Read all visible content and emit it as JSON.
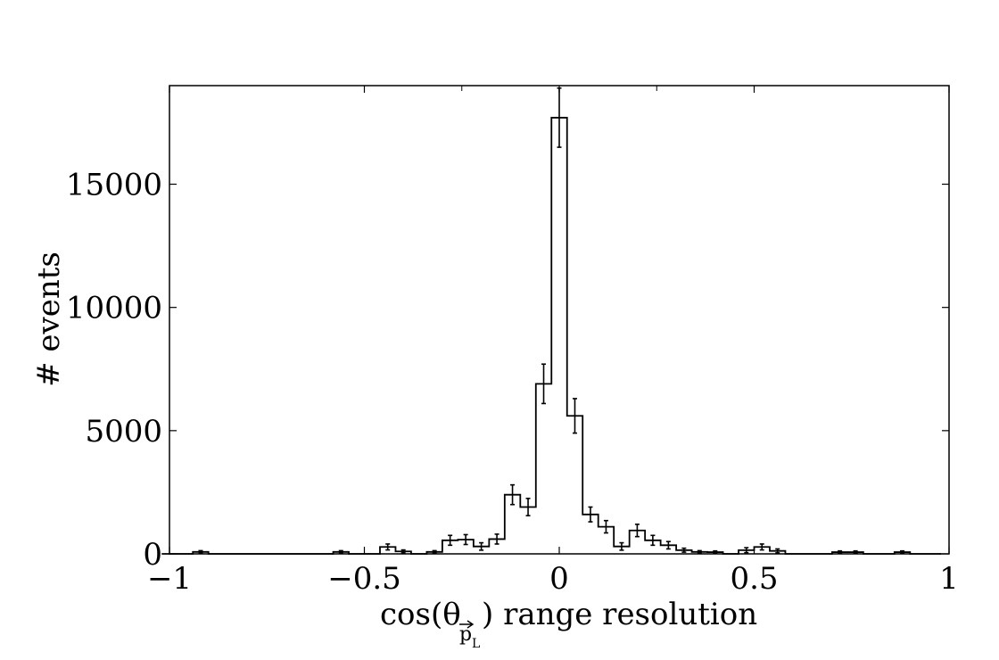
{
  "chart_data": {
    "type": "histogram",
    "xlabel_main": "cos(θ",
    "xlabel_sub": "p",
    "xlabel_subsub": "L",
    "xlabel_rest": ") range resolution",
    "ylabel": "# events",
    "xlim": [
      -1,
      1
    ],
    "ylim": [
      0,
      19000
    ],
    "bin_width": 0.04,
    "x_ticks": [
      -1,
      -0.5,
      0,
      0.5,
      1
    ],
    "x_tick_labels": [
      "−1",
      "−0.5",
      "0",
      "0.5",
      "1"
    ],
    "y_ticks": [
      0,
      5000,
      10000,
      15000
    ],
    "y_tick_labels": [
      "0",
      "5000",
      "10000",
      "15000"
    ],
    "minor_x_ticks": [
      -0.5,
      0,
      0.5
    ],
    "bins": [
      {
        "x": -1.0,
        "y": 0,
        "err": 0
      },
      {
        "x": -0.96,
        "y": 0,
        "err": 0
      },
      {
        "x": -0.92,
        "y": 80,
        "err": 50
      },
      {
        "x": -0.88,
        "y": 0,
        "err": 0
      },
      {
        "x": -0.84,
        "y": 0,
        "err": 0
      },
      {
        "x": -0.8,
        "y": 0,
        "err": 0
      },
      {
        "x": -0.76,
        "y": 0,
        "err": 0
      },
      {
        "x": -0.72,
        "y": 0,
        "err": 0
      },
      {
        "x": -0.68,
        "y": 0,
        "err": 0
      },
      {
        "x": -0.64,
        "y": 0,
        "err": 0
      },
      {
        "x": -0.6,
        "y": 0,
        "err": 0
      },
      {
        "x": -0.56,
        "y": 80,
        "err": 50
      },
      {
        "x": -0.52,
        "y": 0,
        "err": 0
      },
      {
        "x": -0.48,
        "y": 0,
        "err": 0
      },
      {
        "x": -0.44,
        "y": 280,
        "err": 120
      },
      {
        "x": -0.4,
        "y": 100,
        "err": 60
      },
      {
        "x": -0.36,
        "y": 0,
        "err": 0
      },
      {
        "x": -0.32,
        "y": 80,
        "err": 50
      },
      {
        "x": -0.28,
        "y": 550,
        "err": 200
      },
      {
        "x": -0.24,
        "y": 580,
        "err": 200
      },
      {
        "x": -0.2,
        "y": 300,
        "err": 150
      },
      {
        "x": -0.16,
        "y": 600,
        "err": 200
      },
      {
        "x": -0.12,
        "y": 2400,
        "err": 400
      },
      {
        "x": -0.08,
        "y": 1900,
        "err": 350
      },
      {
        "x": -0.04,
        "y": 6900,
        "err": 800
      },
      {
        "x": 0.0,
        "y": 17700,
        "err": 1200
      },
      {
        "x": 0.04,
        "y": 5600,
        "err": 700
      },
      {
        "x": 0.08,
        "y": 1600,
        "err": 300
      },
      {
        "x": 0.12,
        "y": 1100,
        "err": 250
      },
      {
        "x": 0.16,
        "y": 300,
        "err": 150
      },
      {
        "x": 0.2,
        "y": 950,
        "err": 250
      },
      {
        "x": 0.24,
        "y": 550,
        "err": 200
      },
      {
        "x": 0.28,
        "y": 350,
        "err": 150
      },
      {
        "x": 0.32,
        "y": 150,
        "err": 80
      },
      {
        "x": 0.36,
        "y": 80,
        "err": 50
      },
      {
        "x": 0.4,
        "y": 70,
        "err": 50
      },
      {
        "x": 0.44,
        "y": 0,
        "err": 0
      },
      {
        "x": 0.48,
        "y": 150,
        "err": 100
      },
      {
        "x": 0.52,
        "y": 280,
        "err": 120
      },
      {
        "x": 0.56,
        "y": 120,
        "err": 80
      },
      {
        "x": 0.6,
        "y": 0,
        "err": 0
      },
      {
        "x": 0.64,
        "y": 0,
        "err": 0
      },
      {
        "x": 0.68,
        "y": 0,
        "err": 0
      },
      {
        "x": 0.72,
        "y": 70,
        "err": 50
      },
      {
        "x": 0.76,
        "y": 70,
        "err": 50
      },
      {
        "x": 0.8,
        "y": 0,
        "err": 0
      },
      {
        "x": 0.84,
        "y": 0,
        "err": 0
      },
      {
        "x": 0.88,
        "y": 70,
        "err": 50
      },
      {
        "x": 0.92,
        "y": 0,
        "err": 0
      },
      {
        "x": 0.96,
        "y": 0,
        "err": 0
      }
    ],
    "grid": false,
    "line_color": "#000000"
  }
}
